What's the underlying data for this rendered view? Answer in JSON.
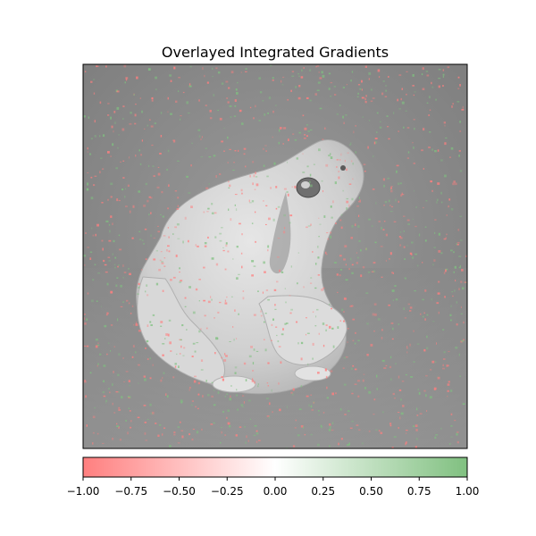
{
  "chart_data": {
    "type": "heatmap",
    "title": "Overlayed Integrated Gradients",
    "image_subject": "frog",
    "colorbar": {
      "cmap": [
        "#ff7f7f",
        "#ffffff",
        "#80c080"
      ],
      "range": [
        -1.0,
        1.0
      ],
      "ticks": [
        -1.0,
        -0.75,
        -0.5,
        -0.25,
        0.0,
        0.25,
        0.5,
        0.75,
        1.0
      ],
      "tick_labels": [
        "−1.00",
        "−0.75",
        "−0.50",
        "−0.25",
        "0.00",
        "0.25",
        "0.50",
        "0.75",
        "1.00"
      ]
    },
    "axes": {
      "xticks": [],
      "yticks": []
    }
  }
}
